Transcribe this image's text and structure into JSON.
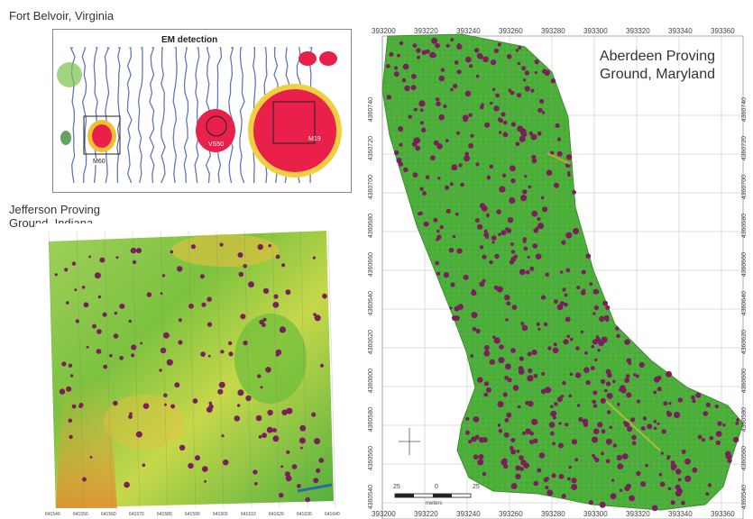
{
  "fort_belvoir": {
    "caption": "Fort Belvoir, Virginia",
    "plot_title": "EM detection",
    "boxes": [
      "M60",
      "VS50",
      "M19"
    ]
  },
  "jefferson": {
    "caption_line1": "Jefferson Proving",
    "caption_line2": "Ground, Indiana",
    "x_ticks": [
      "641540",
      "641550",
      "641560",
      "641570",
      "641580",
      "641590",
      "641600",
      "641610",
      "641620",
      "641630",
      "641640"
    ]
  },
  "aberdeen": {
    "caption_line1": "Aberdeen Proving",
    "caption_line2": "Ground, Maryland",
    "x_ticks": [
      "393200",
      "393220",
      "393240",
      "393260",
      "393280",
      "393300",
      "393320",
      "393340",
      "393360"
    ],
    "y_ticks": [
      "4360740",
      "4360720",
      "4360700",
      "4360680",
      "4360660",
      "4360640",
      "4360620",
      "4360600",
      "4360580",
      "4360560",
      "4360540"
    ],
    "scale_left": "25",
    "scale_mid": "0",
    "scale_right": "25",
    "scale_unit": "meters"
  },
  "colors": {
    "green_field": "#4caf3a",
    "anomaly": "#7a1f5c",
    "hot": "#e8204a",
    "warm": "#f0c030"
  }
}
